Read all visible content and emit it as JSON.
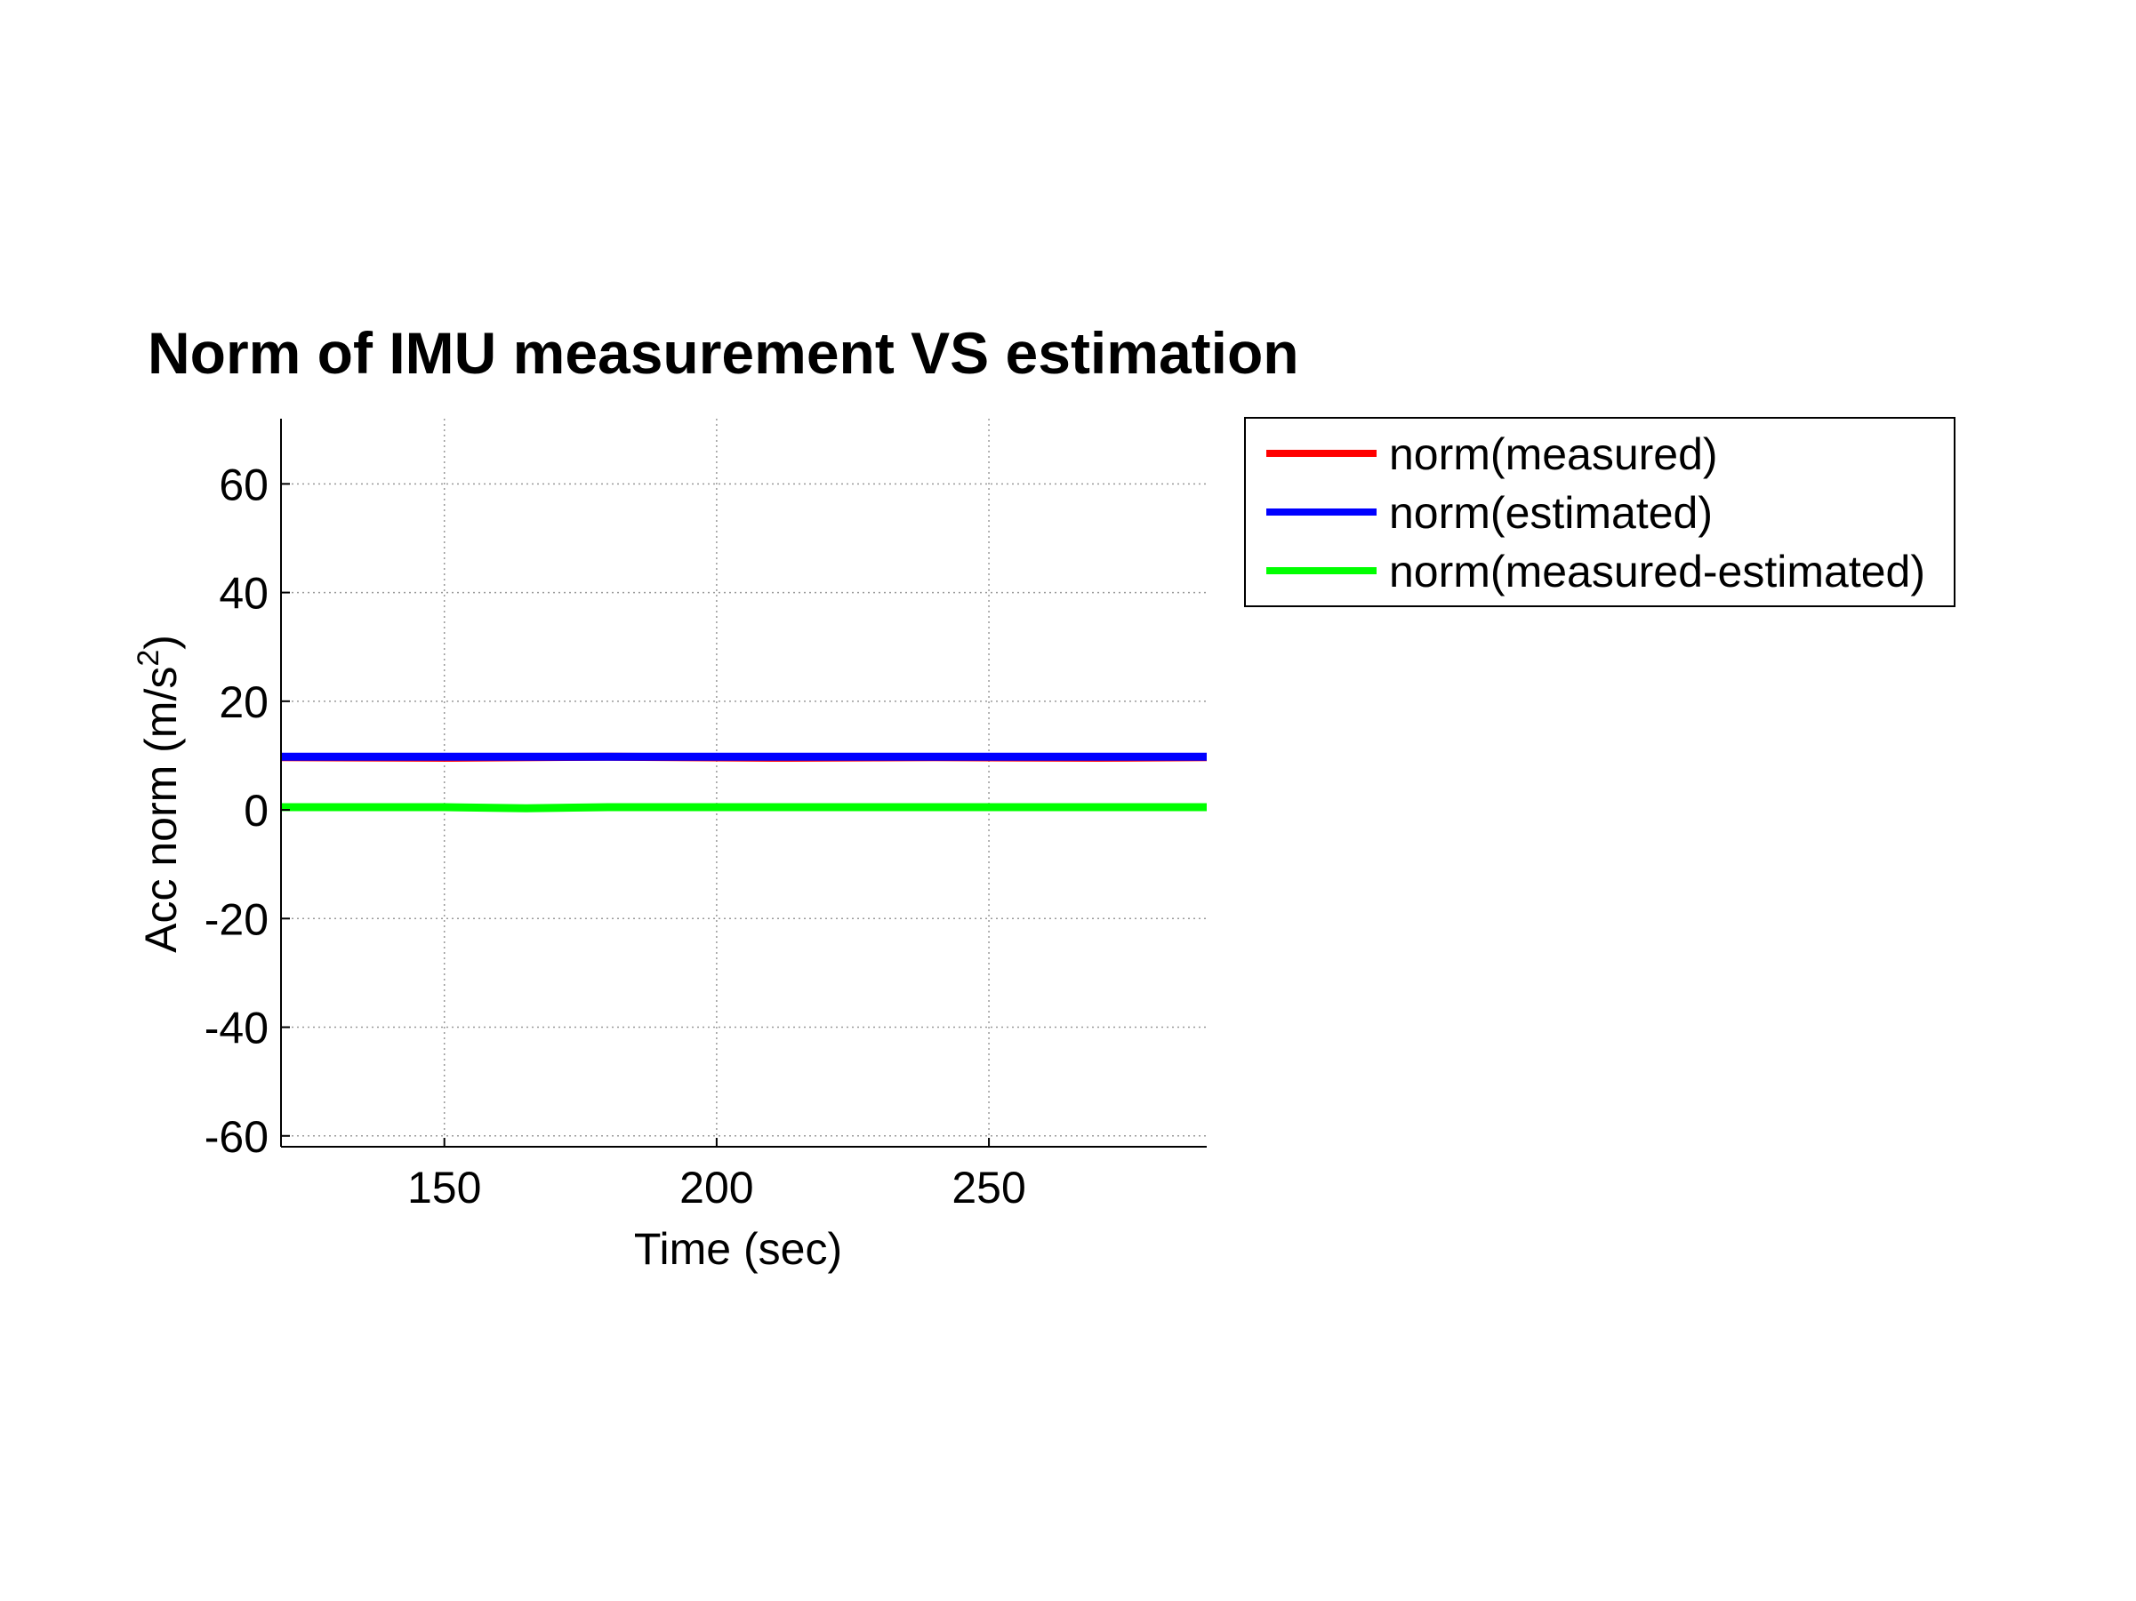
{
  "chart_data": {
    "type": "line",
    "title": "Norm of IMU measurement VS estimation",
    "xlabel": "Time (sec)",
    "ylabel_main": "Acc norm (m/s",
    "ylabel_sup": "2",
    "ylabel_close": ")",
    "xlim": [
      120,
      290
    ],
    "ylim": [
      -62,
      72
    ],
    "xticks": [
      150,
      200,
      250
    ],
    "yticks": [
      -60,
      -40,
      -20,
      0,
      20,
      40,
      60
    ],
    "grid": true,
    "legend_position": "outside-right-top",
    "series": [
      {
        "name": "norm(measured)",
        "color": "#ff0000",
        "x": [
          120,
          150,
          180,
          210,
          240,
          270,
          290
        ],
        "y": [
          9.7,
          9.6,
          9.8,
          9.6,
          9.7,
          9.6,
          9.7
        ]
      },
      {
        "name": "norm(estimated)",
        "color": "#0000ff",
        "x": [
          120,
          150,
          180,
          210,
          240,
          270,
          290
        ],
        "y": [
          9.8,
          9.8,
          9.8,
          9.8,
          9.8,
          9.8,
          9.8
        ]
      },
      {
        "name": "norm(measured-estimated)",
        "color": "#00ff00",
        "x": [
          120,
          150,
          165,
          180,
          210,
          240,
          270,
          290
        ],
        "y": [
          0.5,
          0.5,
          0.3,
          0.5,
          0.5,
          0.5,
          0.5,
          0.5
        ]
      }
    ]
  }
}
